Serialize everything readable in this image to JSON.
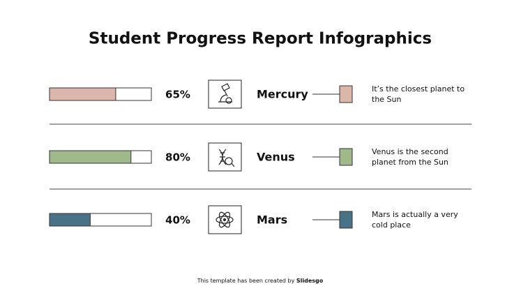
{
  "chart_data": {
    "type": "progress",
    "title": "Student Progress Report Infographics",
    "categories": [
      "Mercury",
      "Venus",
      "Mars"
    ],
    "values": [
      65,
      80,
      40
    ],
    "value_labels": [
      "65%",
      "80%",
      "40%"
    ],
    "colors": [
      "#dcb5ab",
      "#9fb98a",
      "#4a7287"
    ],
    "xlim": [
      0,
      100
    ],
    "descriptions": [
      [
        "It’s the closest planet to",
        "the Sun"
      ],
      [
        "Venus is the second",
        "planet from the Sun"
      ],
      [
        "Mars is actually a very",
        "cold place"
      ]
    ]
  },
  "footer": {
    "text": "This template has been created by",
    "brand": "Slidesgo"
  }
}
